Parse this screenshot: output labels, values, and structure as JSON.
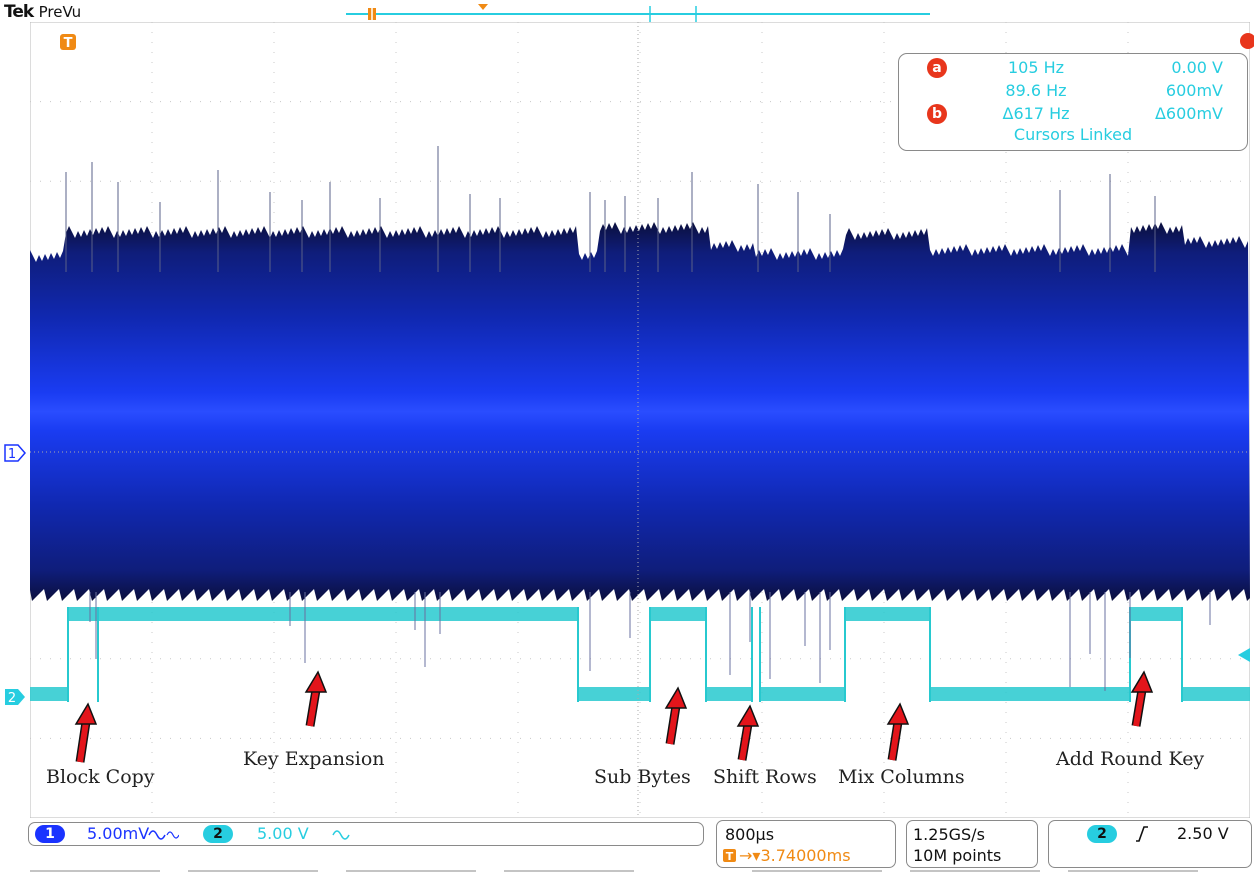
{
  "brand": {
    "vendor": "Tek",
    "mode": "PreVu"
  },
  "colors": {
    "ch1": "#1a33ff",
    "ch1_dark": "#0a1150",
    "ch2": "#27c9cf",
    "orange": "#f08a14",
    "cursor_badge": "#e8361c"
  },
  "icons": {
    "trigger_marker": "orange-T-marker",
    "ch1_marker": "ch1-ground-marker",
    "ch2_marker": "ch2-ground-marker"
  },
  "cursor_readout": {
    "a_label": "a",
    "a_freq": "105 Hz",
    "a_volt": "0.00 V",
    "b_freq": "89.6 Hz",
    "b_volt": "600mV",
    "b_label": "b",
    "delta_freq": "Δ617 Hz",
    "delta_volt": "Δ600mV",
    "linked": "Cursors Linked"
  },
  "annotations": [
    "Block Copy",
    "Key Expansion",
    "Sub Bytes",
    "Shift Rows",
    "Mix Columns",
    "Add Round Key"
  ],
  "markers": {
    "ch1": "1",
    "ch2": "2",
    "trigger": "T"
  },
  "status": {
    "ch1_badge": "1",
    "ch1_scale": "5.00mV",
    "ch2_badge": "2",
    "ch2_scale": "5.00 V",
    "timebase": "800µs",
    "trigger_pos": "→▾3.74000ms",
    "sample_rate": "1.25GS/s",
    "record_length": "10M points",
    "trig_badge": "2",
    "trig_level": "2.50 V"
  }
}
